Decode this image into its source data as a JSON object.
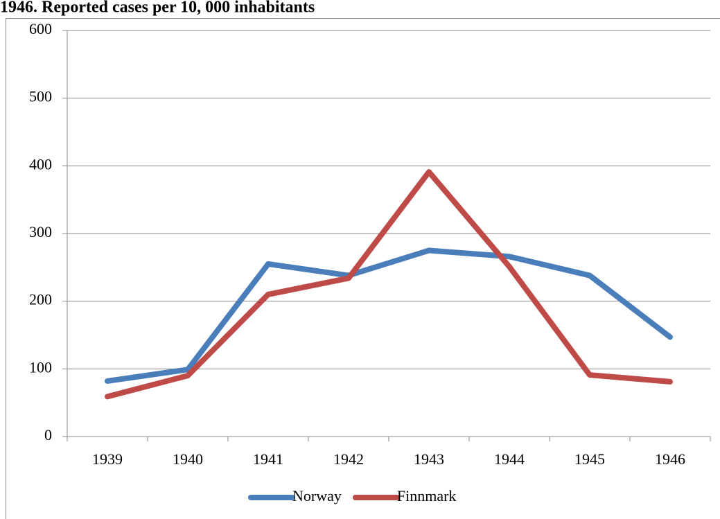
{
  "chart_data": {
    "type": "line",
    "title": "1946. Reported cases per 10, 000 inhabitants",
    "categories": [
      "1939",
      "1940",
      "1941",
      "1942",
      "1943",
      "1944",
      "1945",
      "1946"
    ],
    "series": [
      {
        "name": "Norway",
        "color": "#4a7ebb",
        "values": [
          82,
          99,
          255,
          238,
          275,
          266,
          238,
          147
        ]
      },
      {
        "name": "Finnmark",
        "color": "#be4b48",
        "values": [
          59,
          90,
          210,
          234,
          391,
          251,
          91,
          81
        ]
      }
    ],
    "ylim": [
      0,
      600
    ],
    "yticks": [
      0,
      100,
      200,
      300,
      400,
      500,
      600
    ],
    "grid": true,
    "legend": "bottom"
  }
}
